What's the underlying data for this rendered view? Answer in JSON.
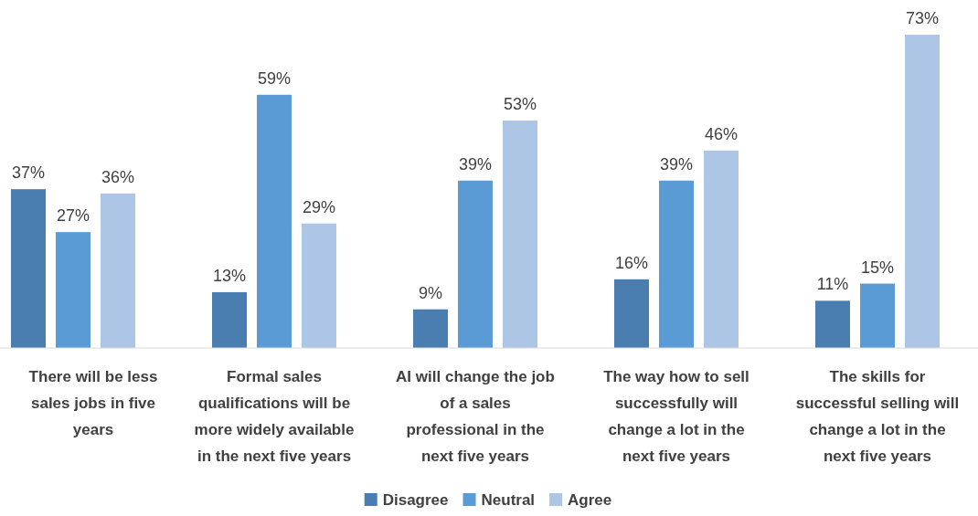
{
  "chart_data": {
    "type": "bar",
    "categories": [
      "There will be less sales jobs in five years",
      "Formal sales qualifications will be more widely available in the next five years",
      "AI will change the job of a sales professional in the next five years",
      "The way how to sell successfully will change a lot in the next five years",
      "The skills for successful selling will change a lot in the next five years"
    ],
    "series": [
      {
        "name": "Disagree",
        "color": "#4a7eb0",
        "values": [
          37,
          13,
          9,
          16,
          11
        ],
        "value_labels": [
          "37%",
          "13%",
          "9%",
          "16%",
          "11%"
        ]
      },
      {
        "name": "Neutral",
        "color": "#5b9bd5",
        "values": [
          27,
          59,
          39,
          39,
          15
        ],
        "value_labels": [
          "27%",
          "59%",
          "39%",
          "39%",
          "15%"
        ]
      },
      {
        "name": "Agree",
        "color": "#adc6e5",
        "values": [
          36,
          29,
          53,
          46,
          73
        ],
        "value_labels": [
          "36%",
          "29%",
          "53%",
          "46%",
          "73%"
        ]
      }
    ],
    "legend": "bottom"
  }
}
